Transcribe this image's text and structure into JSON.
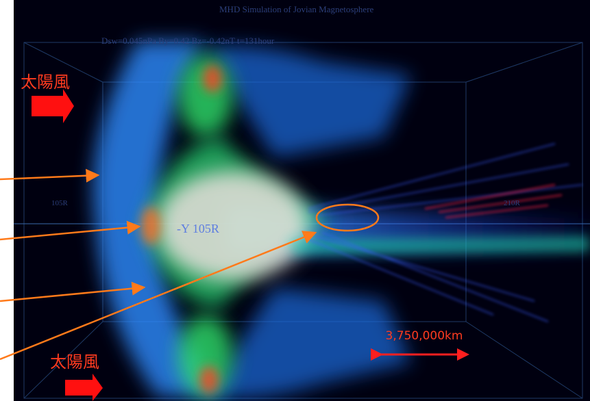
{
  "header": {
    "title": "MHD Simulation of Jovian Magnetosphere",
    "parameters": "Dsw=0.045nPa By=0.42 Bz=-0.42nT t=131hour"
  },
  "axis_labels": {
    "left": "105R",
    "right": "210R",
    "center": "-Y 105R"
  },
  "annotations": {
    "solar_wind_top": "太陽風",
    "solar_wind_bottom": "太陽風",
    "scale": "3,750,000km"
  }
}
